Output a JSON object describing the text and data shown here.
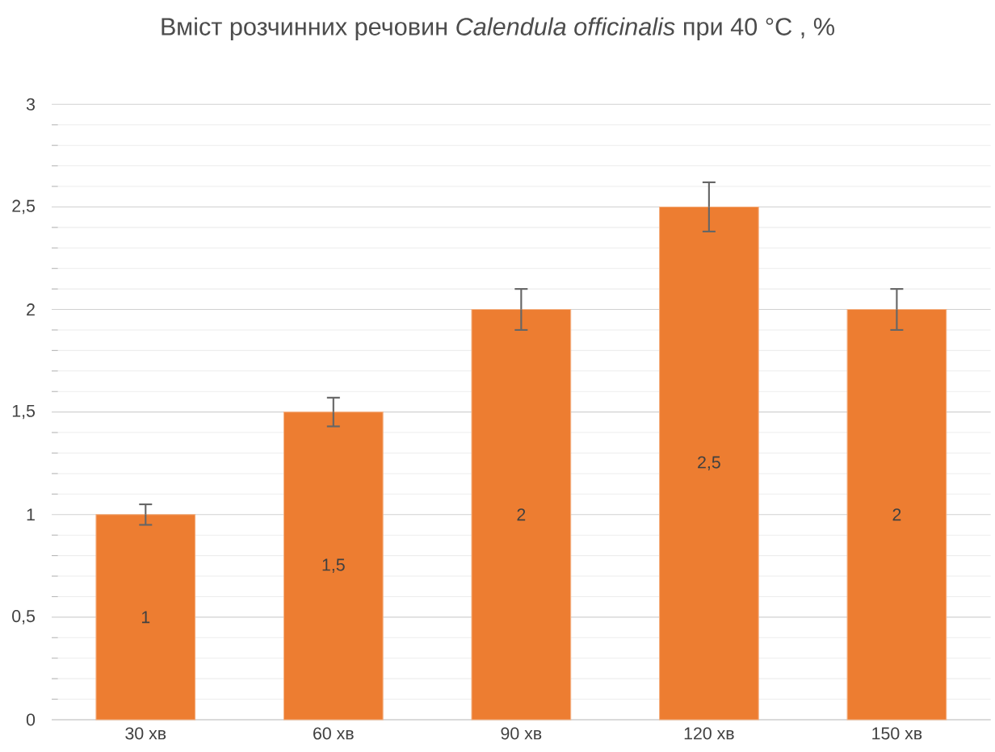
{
  "chart_data": {
    "type": "bar",
    "title": "Вміст розчинних речовин *Calendula officinalis* при 40 °C , %",
    "categories": [
      "30 хв",
      "60 хв",
      "90 хв",
      "120 хв",
      "150 хв"
    ],
    "values": [
      1,
      1.5,
      2,
      2.5,
      2
    ],
    "errors": [
      0.05,
      0.07,
      0.1,
      0.12,
      0.1
    ],
    "value_labels": [
      "1",
      "1,5",
      "2",
      "2,5",
      "2"
    ],
    "color": "#ed7d31",
    "ylim": [
      0,
      3
    ],
    "yticks": [
      {
        "value": 0,
        "label": "0"
      },
      {
        "value": 0.5,
        "label": "0,5"
      },
      {
        "value": 1,
        "label": "1"
      },
      {
        "value": 1.5,
        "label": "1,5"
      },
      {
        "value": 2,
        "label": "2"
      },
      {
        "value": 2.5,
        "label": "2,5"
      },
      {
        "value": 3,
        "label": "3"
      }
    ],
    "grid": "y"
  }
}
